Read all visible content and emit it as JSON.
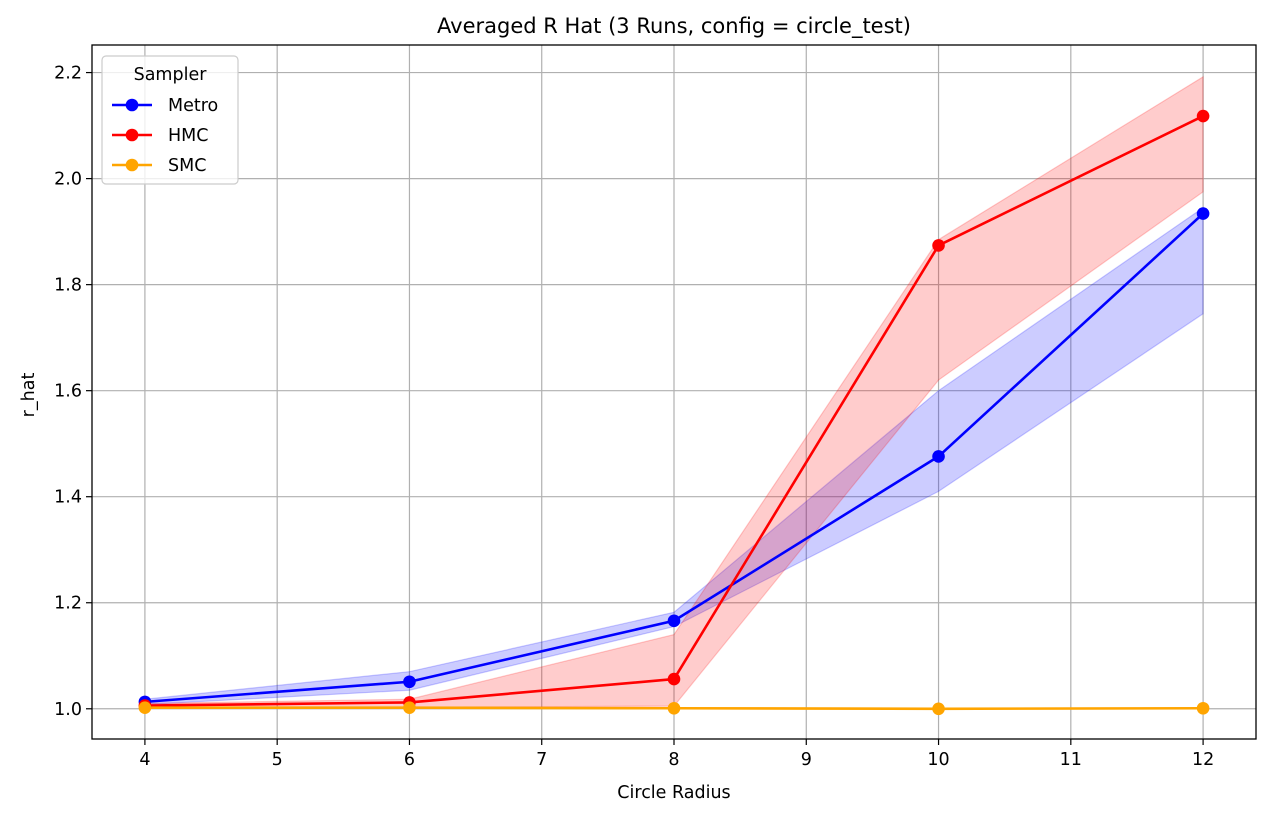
{
  "chart_data": {
    "type": "line",
    "title": "Averaged R Hat (3 Runs, config = circle_test)",
    "xlabel": "Circle Radius",
    "ylabel": "r_hat",
    "x": [
      4,
      6,
      8,
      10,
      12
    ],
    "xlim": [
      3.6,
      12.4
    ],
    "ylim": [
      0.943,
      2.252
    ],
    "xticks": [
      4,
      5,
      6,
      7,
      8,
      9,
      10,
      11,
      12
    ],
    "yticks": [
      "1.0",
      "1.2",
      "1.4",
      "1.6",
      "1.8",
      "2.0",
      "2.2"
    ],
    "grid": true,
    "legend": {
      "title": "Sampler",
      "position": "top-left"
    },
    "series": [
      {
        "name": "Metro",
        "color": "#0000ff",
        "values": [
          1.013,
          1.051,
          1.166,
          1.476,
          1.934
        ],
        "band_lower": [
          1.008,
          1.035,
          1.155,
          1.41,
          1.745
        ],
        "band_upper": [
          1.018,
          1.07,
          1.182,
          1.6,
          1.945
        ]
      },
      {
        "name": "HMC",
        "color": "#ff0000",
        "values": [
          1.006,
          1.012,
          1.056,
          1.874,
          2.118
        ],
        "band_lower": [
          1.001,
          1.003,
          1.005,
          1.62,
          1.975
        ],
        "band_upper": [
          1.01,
          1.018,
          1.14,
          1.885,
          2.192
        ]
      },
      {
        "name": "SMC",
        "color": "#ffa500",
        "values": [
          1.002,
          1.002,
          1.001,
          1.0,
          1.001
        ],
        "band_lower": [
          1.001,
          1.001,
          1.0,
          0.999,
          1.0
        ],
        "band_upper": [
          1.003,
          1.003,
          1.002,
          1.001,
          1.002
        ]
      }
    ]
  }
}
